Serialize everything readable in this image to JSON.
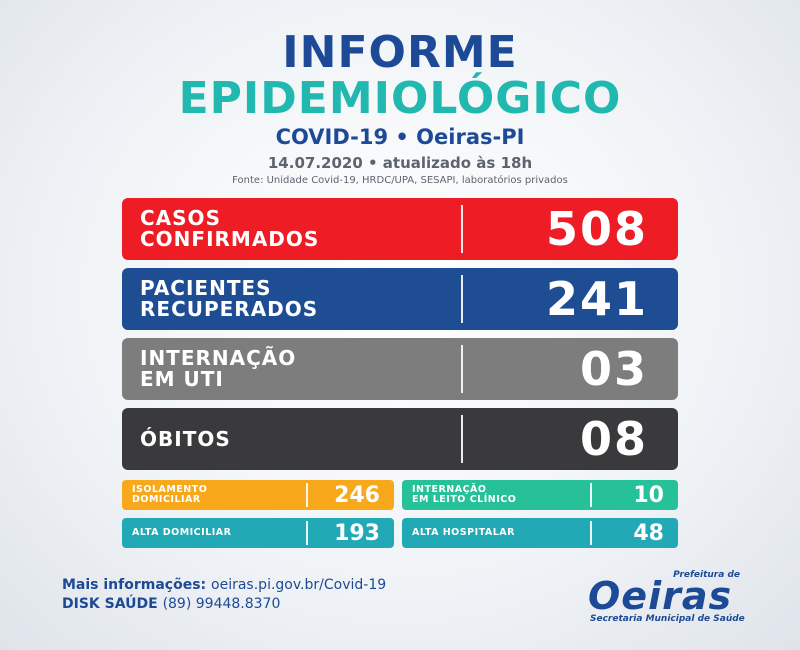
{
  "header": {
    "title_line1": "INFORME",
    "title_line2": "EPIDEMIOLÓGICO",
    "subtitle": "COVID-19 • Oeiras-PI",
    "date": "14.07.2020 • atualizado às 18h",
    "source": "Fonte: Unidade Covid-19, HRDC/UPA, SESAPI, laboratórios privados"
  },
  "main_stats": [
    {
      "label": "CASOS\nCONFIRMADOS",
      "value": "508",
      "color": "#ee1c25"
    },
    {
      "label": "PACIENTES\nRECUPERADOS",
      "value": "241",
      "color": "#1f4d93"
    },
    {
      "label": "INTERNAÇÃO\nEM UTI",
      "value": "03",
      "color": "#7d7d7d"
    },
    {
      "label": "ÓBITOS",
      "value": "08",
      "color": "#3a3a3c"
    }
  ],
  "secondary_stats": [
    {
      "label": "ISOLAMENTO\nDOMICILIAR",
      "value": "246",
      "color": "#f7a81b"
    },
    {
      "label": "INTERNAÇÃO\nEM LEITO CLÍNICO",
      "value": "10",
      "color": "#26c198"
    },
    {
      "label": "ALTA DOMICILIAR",
      "value": "193",
      "color": "#21a9b6"
    },
    {
      "label": "ALTA HOSPITALAR",
      "value": "48",
      "color": "#21a9b6"
    }
  ],
  "footer": {
    "info_label": "Mais informações:",
    "info_value": "oeiras.pi.gov.br/Covid-19",
    "phone_label": "DISK SAÚDE",
    "phone_value": "(89) 99448.8370"
  },
  "logo": {
    "prefeitura": "Prefeitura de",
    "name": "Oeiras",
    "secretaria": "Secretaria Municipal de Saúde"
  }
}
